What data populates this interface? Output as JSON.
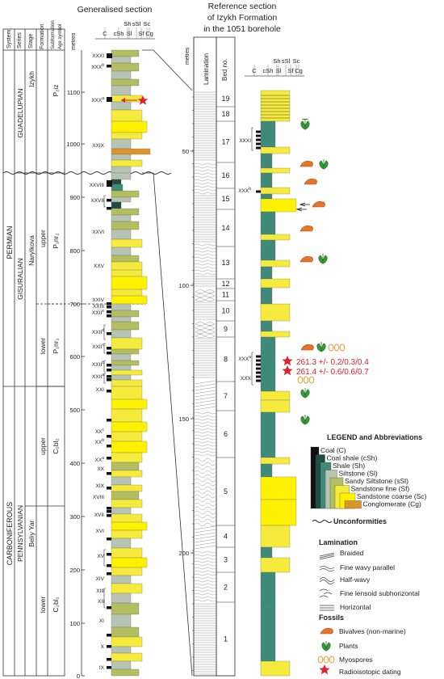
{
  "left_header": {
    "system": "System",
    "series": "Series",
    "stage": "Stage",
    "formation": "Formation",
    "subformation": "Subformation",
    "age_symbol": "Age symbol",
    "metres": "metres",
    "title": "Generalised section"
  },
  "grain_scale": {
    "top": [
      "Sh",
      "sSl",
      "Sc"
    ],
    "bottom": [
      "C",
      "cSh",
      "Sl",
      "Sf",
      "Cg"
    ]
  },
  "strat": {
    "permian": "PERMIAN",
    "carboniferous": "CARBONIFEROUS",
    "guadelupian": "GUADELUPIAN",
    "gisuralian": "GISURALIAN",
    "pennsylvanian": "PENNSYLVANIAN",
    "izykh": "Izykh",
    "narylkova": "Narylkova",
    "beliy_yar": "Beliy Yar",
    "upper": "upper",
    "lower": "lower",
    "p2iz": "P₂iz",
    "p1nr2": "P₁nr₂",
    "p1nr1": "P₁nr₁",
    "c2bl2": "C₂bl₂",
    "c2bl1": "C₂bl₁"
  },
  "left_depth_ticks": [
    "1100",
    "1000",
    "900",
    "800",
    "700",
    "600",
    "500",
    "400",
    "300",
    "200",
    "100",
    "0"
  ],
  "left_seam_labels": [
    {
      "text": "XXXI",
      "sup": ""
    },
    {
      "text": "XXX",
      "sup": "b"
    },
    {
      "text": "XXX",
      "sup": "a"
    },
    {
      "text": "XXIX",
      "sup": ""
    },
    {
      "text": "XXVIII",
      "sup": ""
    },
    {
      "text": "XXVII",
      "sup": ""
    },
    {
      "text": "XXVI",
      "sup": ""
    },
    {
      "text": "XXV",
      "sup": ""
    },
    {
      "text": "XXIV",
      "sup": ""
    },
    {
      "text": "XXIII",
      "sup": ""
    },
    {
      "text": "XXII",
      "sup": "e"
    },
    {
      "text": "XXII",
      "sup": "d"
    },
    {
      "text": "XXII",
      "sup": "c"
    },
    {
      "text": "XXII",
      "sup": "b"
    },
    {
      "text": "XXII",
      "sup": "a"
    },
    {
      "text": "XXI",
      "sup": ""
    },
    {
      "text": "XX",
      "sup": "c"
    },
    {
      "text": "XX",
      "sup": "b"
    },
    {
      "text": "XX",
      "sup": "a"
    },
    {
      "text": "XX",
      "sup": ""
    },
    {
      "text": "XIX",
      "sup": ""
    },
    {
      "text": "XVIII",
      "sup": ""
    },
    {
      "text": "XVII",
      "sup": ""
    },
    {
      "text": "XVI",
      "sup": ""
    },
    {
      "text": "XV",
      "sup": ""
    },
    {
      "text": "XIV",
      "sup": ""
    },
    {
      "text": "XIII",
      "sup": ""
    },
    {
      "text": "XII",
      "sup": ""
    },
    {
      "text": "XI",
      "sup": ""
    },
    {
      "text": "X",
      "sup": ""
    },
    {
      "text": "IX",
      "sup": ""
    }
  ],
  "right_header": {
    "title_line1": "Reference section",
    "title_line2": "of Izykh Formation",
    "title_line3": "in the 1051 borehole",
    "metres": "metres",
    "lamination": "Lamination",
    "bed_no": "Bed no."
  },
  "right_depth_ticks": [
    "50",
    "100",
    "150",
    "200"
  ],
  "bed_numbers": [
    "19",
    "18",
    "17",
    "16",
    "15",
    "14",
    "13",
    "12",
    "11",
    "10",
    "9",
    "8",
    "7",
    "6",
    "5",
    "4",
    "3",
    "2",
    "1"
  ],
  "right_seam_labels": [
    {
      "text": "XXXI",
      "sup": ""
    },
    {
      "text": "XXX",
      "sup": "b"
    },
    {
      "text": "XXX",
      "sup": "a"
    },
    {
      "text": "XXX",
      "sup": ""
    }
  ],
  "dates": [
    "261.3 +/- 0.2/0.3/0.4",
    "261.4 +/- 0.6/0.6/0.7"
  ],
  "legend": {
    "title": "LEGEND and Abbreviations",
    "lithology": [
      {
        "label": "Coal (C)",
        "color": "#111111"
      },
      {
        "label": "Coal shale (cSh)",
        "color": "#1e4d44"
      },
      {
        "label": "Shale (Sh)",
        "color": "#3f8a78"
      },
      {
        "label": "Siltstone (Sl)",
        "color": "#b7c4b3"
      },
      {
        "label": "Sandy Siltstone (sSl)",
        "color": "#b3bd62"
      },
      {
        "label": "Sandstone fine (Sf)",
        "color": "#f6ea3c"
      },
      {
        "label": "Sandstone coarse (Sc)",
        "color": "#fff200"
      },
      {
        "label": "Conglomerate (Cg)",
        "color": "#d9962a"
      }
    ],
    "unconformities": "Unconformities",
    "lamination_title": "Lamination",
    "lamination_items": [
      "Braided",
      "Fine wavy parallel",
      "Half-wavy",
      "Fine lensoid subhorizontal",
      "Horizontal"
    ],
    "fossils_title": "Fossils",
    "fossils": [
      "Bivalves (non-marine)",
      "Plants",
      "Myospores"
    ],
    "radio": "Radioisotopic dating"
  },
  "colors": {
    "coal": "#111111",
    "coal_shale": "#1e4d44",
    "shale": "#3f8a78",
    "siltstone": "#b7c4b3",
    "sandy_siltstone": "#b3bd62",
    "sandstone_fine": "#f6ea3c",
    "sandstone_coarse": "#fff200",
    "conglomerate": "#d9962a",
    "bivalve": "#e8742a",
    "plant": "#3a9a3a",
    "spore": "#e89a30",
    "star": "#e0202a"
  }
}
